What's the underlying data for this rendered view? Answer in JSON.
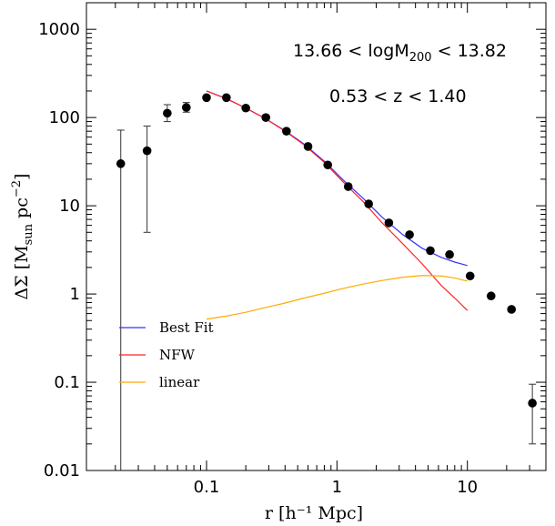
{
  "chart_data": {
    "type": "scatter",
    "x_scale": "log",
    "y_scale": "log",
    "xlim": [
      0.012,
      40
    ],
    "ylim": [
      0.01,
      2000
    ],
    "x_ticks": [
      {
        "value": 0.1,
        "label": "0.1"
      },
      {
        "value": 1,
        "label": "1"
      },
      {
        "value": 10,
        "label": "10"
      }
    ],
    "y_ticks": [
      {
        "value": 0.01,
        "label": "0.01"
      },
      {
        "value": 0.1,
        "label": "0.1"
      },
      {
        "value": 1,
        "label": "1"
      },
      {
        "value": 10,
        "label": "10"
      },
      {
        "value": 100,
        "label": "100"
      },
      {
        "value": 1000,
        "label": "1000"
      }
    ],
    "xlabel": "r [h⁻¹ Mpc]",
    "ylabel_prefix": "ΔΣ  [M",
    "ylabel_sub": "sun",
    "ylabel_mid": "  pc",
    "ylabel_sup": "−2",
    "ylabel_suffix": "]",
    "annotation_mass_left": "13.66  <  logM",
    "annotation_mass_sub": "200",
    "annotation_mass_right": "  <  13.82",
    "annotation_z": "0.53  <  z  <  1.40",
    "points": [
      {
        "x": 0.022,
        "y": 30,
        "ylo": 0.01,
        "yhi": 72
      },
      {
        "x": 0.035,
        "y": 42,
        "ylo": 5,
        "yhi": 80
      },
      {
        "x": 0.05,
        "y": 112,
        "ylo": 90,
        "yhi": 140
      },
      {
        "x": 0.07,
        "y": 130,
        "ylo": 115,
        "yhi": 148
      },
      {
        "x": 0.1,
        "y": 168
      },
      {
        "x": 0.142,
        "y": 168
      },
      {
        "x": 0.2,
        "y": 128
      },
      {
        "x": 0.285,
        "y": 100
      },
      {
        "x": 0.41,
        "y": 70
      },
      {
        "x": 0.6,
        "y": 47
      },
      {
        "x": 0.85,
        "y": 29
      },
      {
        "x": 1.22,
        "y": 16.5
      },
      {
        "x": 1.75,
        "y": 10.5
      },
      {
        "x": 2.5,
        "y": 6.4
      },
      {
        "x": 3.6,
        "y": 4.7
      },
      {
        "x": 5.2,
        "y": 3.1
      },
      {
        "x": 7.3,
        "y": 2.8
      },
      {
        "x": 10.5,
        "y": 1.6
      },
      {
        "x": 15.2,
        "y": 0.95
      },
      {
        "x": 21.8,
        "y": 0.67
      },
      {
        "x": 31.5,
        "y": 0.058,
        "ylo": 0.02,
        "yhi": 0.095
      }
    ],
    "series": [
      {
        "name": "Best Fit",
        "color": "#3333ff",
        "x": [
          0.1,
          0.14,
          0.2,
          0.28,
          0.4,
          0.56,
          0.8,
          1.1,
          1.6,
          2.2,
          3.2,
          4.5,
          6.3,
          8.0,
          10.0
        ],
        "y": [
          200,
          165,
          128,
          98,
          71,
          50,
          32,
          20,
          12,
          7.5,
          4.7,
          3.3,
          2.6,
          2.3,
          2.1
        ]
      },
      {
        "name": "NFW",
        "color": "#ff2222",
        "x": [
          0.1,
          0.14,
          0.2,
          0.28,
          0.4,
          0.56,
          0.8,
          1.1,
          1.6,
          2.2,
          3.2,
          4.5,
          6.3,
          8.0,
          10.0
        ],
        "y": [
          200,
          165,
          128,
          98,
          70,
          49,
          31,
          19,
          11,
          6.5,
          3.7,
          2.2,
          1.25,
          0.9,
          0.65
        ]
      },
      {
        "name": "linear",
        "color": "#ffaa00",
        "x": [
          0.1,
          0.14,
          0.2,
          0.28,
          0.4,
          0.56,
          0.8,
          1.1,
          1.6,
          2.2,
          3.2,
          4.5,
          6.3,
          8.0,
          10.0
        ],
        "y": [
          0.52,
          0.56,
          0.62,
          0.7,
          0.79,
          0.9,
          1.02,
          1.15,
          1.3,
          1.42,
          1.55,
          1.62,
          1.6,
          1.52,
          1.4
        ]
      }
    ],
    "legend": [
      {
        "label": "Best Fit",
        "color": "#3333ff"
      },
      {
        "label": "NFW",
        "color": "#ff2222"
      },
      {
        "label": "linear",
        "color": "#ffaa00"
      }
    ]
  }
}
